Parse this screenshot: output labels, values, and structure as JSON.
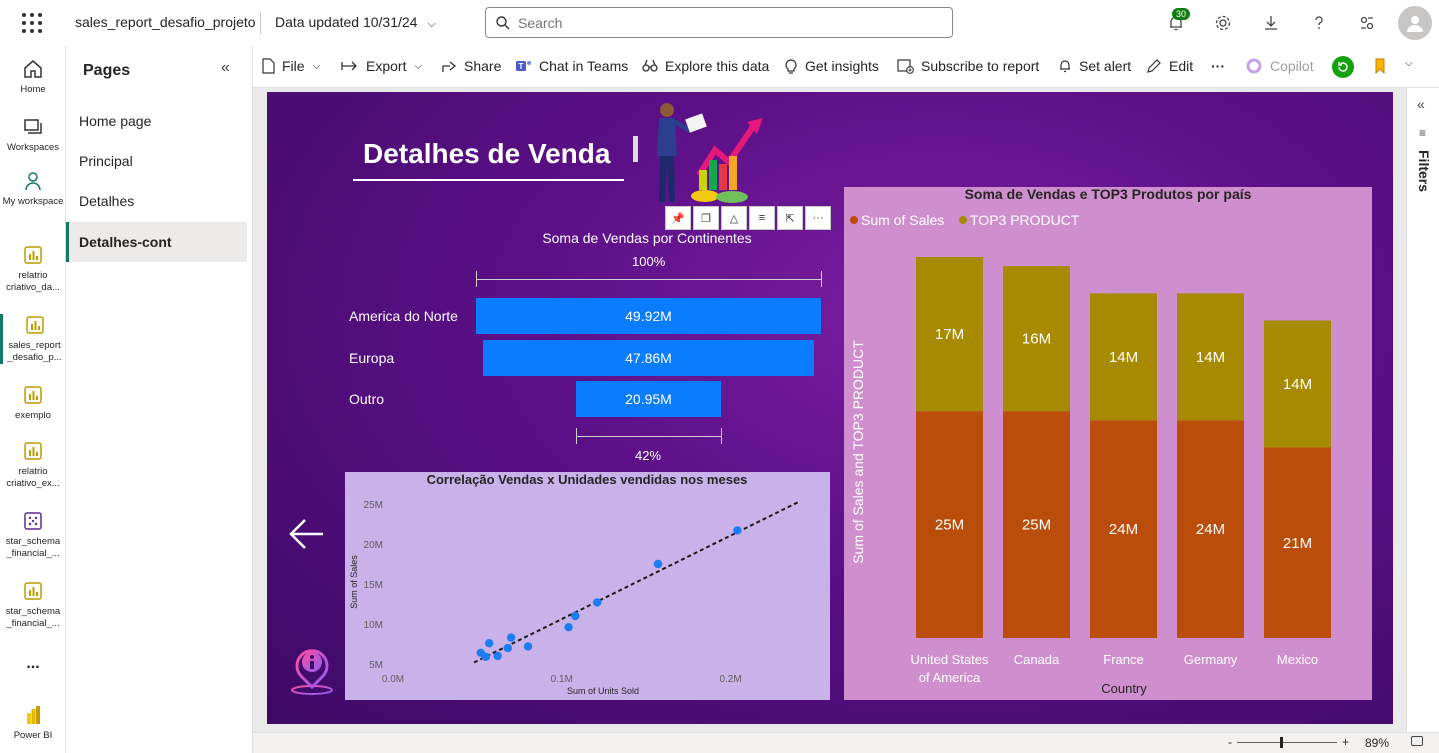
{
  "topbar": {
    "report_name": "sales_report_desafio_projeto",
    "data_updated": "Data updated 10/31/24",
    "search_placeholder": "Search",
    "notifications_count": "30"
  },
  "rail": {
    "items": [
      {
        "label": "Home"
      },
      {
        "label": "Workspaces"
      },
      {
        "label": "My workspace"
      },
      {
        "label": "relatrio criativo_da..."
      },
      {
        "label": "sales_report _desafio_p..."
      },
      {
        "label": "exemplo"
      },
      {
        "label": "relatrio criativo_ex..."
      },
      {
        "label": "star_schema _financial_..."
      },
      {
        "label": "star_schema _financial_..."
      },
      {
        "label": "..."
      },
      {
        "label": "Power BI"
      }
    ]
  },
  "pages": {
    "title": "Pages",
    "items": [
      {
        "label": "Home page"
      },
      {
        "label": "Principal"
      },
      {
        "label": "Detalhes"
      },
      {
        "label": "Detalhes-cont"
      }
    ],
    "active_index": 3
  },
  "actionbar": {
    "file": "File",
    "export": "Export",
    "share": "Share",
    "chat": "Chat in Teams",
    "explore": "Explore this data",
    "insights": "Get insights",
    "subscribe": "Subscribe to report",
    "alert": "Set alert",
    "edit": "Edit",
    "more": "···",
    "copilot": "Copilot"
  },
  "filters": {
    "label": "Filters"
  },
  "status": {
    "zoom": "89%"
  },
  "report": {
    "title": "Detalhes de Venda"
  },
  "chart_data": [
    {
      "type": "funnel",
      "title": "Soma de Vendas por Continentes",
      "top_pct": "100%",
      "bottom_pct": "42%",
      "categories": [
        "America do Norte",
        "Europa",
        "Outro"
      ],
      "values": [
        49.92,
        47.86,
        20.95
      ],
      "value_labels": [
        "49.92M",
        "47.86M",
        "20.95M"
      ],
      "unit": "M",
      "bar_color": "#0a7cff"
    },
    {
      "type": "scatter",
      "title": "Correlação Vendas x Unidades vendidas nos meses",
      "xlabel": "Sum of Units Sold",
      "ylabel": "Sum of Sales",
      "x_ticks": [
        "0.0M",
        "0.1M",
        "0.2M"
      ],
      "y_ticks": [
        "25M",
        "20M",
        "15M",
        "10M",
        "5M"
      ],
      "xlim": [
        0,
        0.25
      ],
      "ylim": [
        4,
        27
      ],
      "trendline": true,
      "points": [
        {
          "x": 0.052,
          "y": 6.4
        },
        {
          "x": 0.055,
          "y": 5.9
        },
        {
          "x": 0.057,
          "y": 7.6
        },
        {
          "x": 0.062,
          "y": 6.0
        },
        {
          "x": 0.068,
          "y": 7.0
        },
        {
          "x": 0.07,
          "y": 8.3
        },
        {
          "x": 0.08,
          "y": 7.2
        },
        {
          "x": 0.104,
          "y": 9.6
        },
        {
          "x": 0.108,
          "y": 11.0
        },
        {
          "x": 0.121,
          "y": 12.7
        },
        {
          "x": 0.157,
          "y": 17.5
        },
        {
          "x": 0.204,
          "y": 21.7
        }
      ],
      "point_color": "#1e7cf2"
    },
    {
      "type": "bar",
      "stacked": true,
      "title": "Soma de Vendas e TOP3 Produtos por país",
      "xlabel": "Country",
      "ylabel": "Sum of Sales and TOP3 PRODUCT",
      "legend": "top-left",
      "categories": [
        "United States of America",
        "Canada",
        "France",
        "Germany",
        "Mexico"
      ],
      "category_lines": [
        [
          "United States",
          "of America"
        ],
        [
          "Canada"
        ],
        [
          "France"
        ],
        [
          "Germany"
        ],
        [
          "Mexico"
        ]
      ],
      "series": [
        {
          "name": "Sum of  Sales",
          "values": [
            25,
            25,
            24,
            24,
            21
          ],
          "labels": [
            "25M",
            "25M",
            "24M",
            "24M",
            "21M"
          ],
          "color": "#bb4d0b"
        },
        {
          "name": "TOP3 PRODUCT",
          "values": [
            17,
            16,
            14,
            14,
            14
          ],
          "labels": [
            "17M",
            "16M",
            "14M",
            "14M",
            "14M"
          ],
          "color": "#a88a00"
        }
      ],
      "ylim": [
        0,
        42
      ]
    }
  ]
}
